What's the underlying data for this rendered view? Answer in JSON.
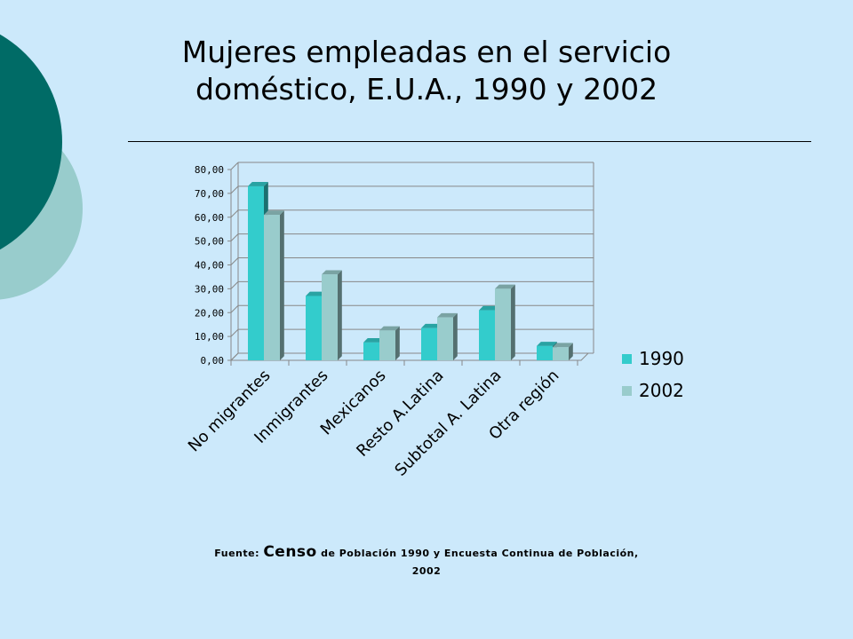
{
  "slide": {
    "title_line1": "Mujeres empleadas  en el servicio",
    "title_line2": "doméstico, E.U.A., 1990 y 2002",
    "source_prefix": "Fuente: ",
    "source_emph": "Censo",
    "source_rest": " de Población 1990 y  Encuesta Continua de Población, 2002",
    "colors": {
      "background": "#cce9fb",
      "circle_dark": "#006b66",
      "circle_light": "#98cccc"
    }
  },
  "chart_data": {
    "type": "bar",
    "style": "3d-clustered-column",
    "categories": [
      "No migrantes",
      "Inmigrantes",
      "Mexicanos",
      "Resto A.Latina",
      "Subtotal A. Latina",
      "Otra región"
    ],
    "series": [
      {
        "name": "1990",
        "color": "#33cccc",
        "values": [
          73,
          27,
          7.5,
          13.5,
          21,
          6
        ]
      },
      {
        "name": "2002",
        "color": "#99cccc",
        "values": [
          61,
          36,
          12.5,
          18,
          30,
          5.5
        ]
      }
    ],
    "yticks": [
      "0,00",
      "10,00",
      "20,00",
      "30,00",
      "40,00",
      "50,00",
      "60,00",
      "70,00",
      "80,00"
    ],
    "ylim": [
      0,
      80
    ],
    "grid": true,
    "legend_position": "right"
  }
}
